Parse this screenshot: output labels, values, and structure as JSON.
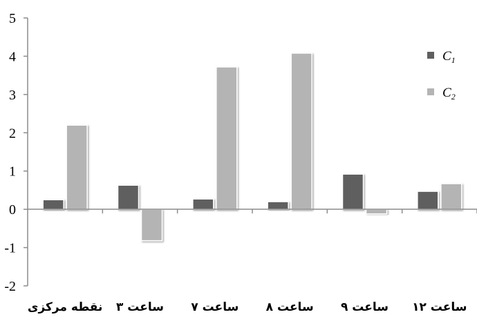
{
  "chart_data": {
    "type": "bar",
    "categories": [
      "نقطه مرکزی",
      "ساعت ۳",
      "ساعت ۷",
      "ساعت ۸",
      "ساعت ۹",
      "ساعت ۱۲"
    ],
    "series": [
      {
        "name": "C1",
        "values": [
          0.25,
          0.63,
          0.27,
          0.2,
          0.92,
          0.47
        ]
      },
      {
        "name": "C2",
        "values": [
          2.2,
          -0.82,
          3.72,
          4.08,
          -0.12,
          0.67
        ]
      }
    ],
    "ylim": [
      -2,
      5
    ],
    "yticks": [
      "-2",
      "-1",
      "0",
      "1",
      "2",
      "3",
      "4",
      "5"
    ],
    "legend": {
      "position": "top-right",
      "entries": [
        {
          "symbol": "C",
          "subscript": "1"
        },
        {
          "symbol": "C",
          "subscript": "2"
        }
      ]
    },
    "colors": {
      "C1": "#5f5f5f",
      "C2": "#b4b4b4",
      "axis": "#8c8c8c"
    }
  }
}
